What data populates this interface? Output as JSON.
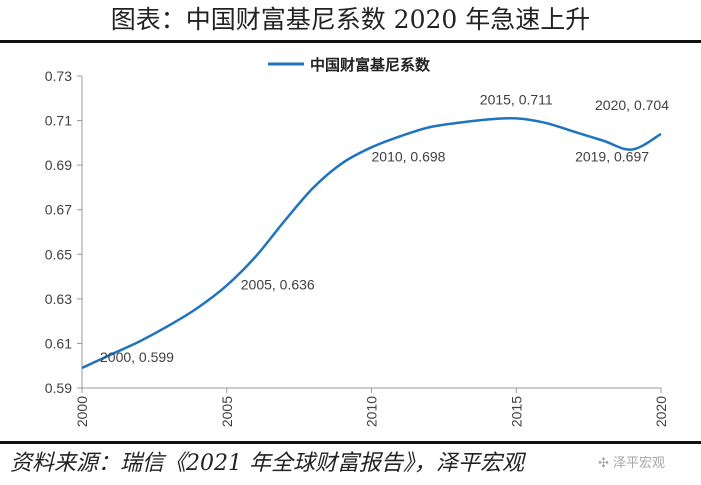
{
  "title": "图表：中国财富基尼系数 2020 年急速上升",
  "source": "资料来源：瑞信《2021 年全球财富报告》，泽平宏观",
  "watermark": "泽平宏观",
  "colors": {
    "series": "#1f74bd",
    "axis": "#999999",
    "text": "#404040"
  },
  "chart_data": {
    "type": "line",
    "legend": {
      "entries": [
        "中国财富基尼系数"
      ],
      "placement": "top-center"
    },
    "xlim": [
      2000,
      2020
    ],
    "x_ticks": [
      "2000",
      "2005",
      "2010",
      "2015",
      "2020"
    ],
    "ylim": [
      0.59,
      0.73
    ],
    "y_ticks": [
      "0.59",
      "0.61",
      "0.63",
      "0.65",
      "0.67",
      "0.69",
      "0.71",
      "0.73"
    ],
    "grid": false,
    "series": [
      {
        "name": "中国财富基尼系数",
        "x": [
          2000,
          2001,
          2002,
          2003,
          2004,
          2005,
          2006,
          2007,
          2008,
          2009,
          2010,
          2011,
          2012,
          2013,
          2014,
          2015,
          2016,
          2017,
          2018,
          2019,
          2020
        ],
        "y": [
          0.599,
          0.605,
          0.611,
          0.618,
          0.626,
          0.636,
          0.649,
          0.665,
          0.68,
          0.691,
          0.698,
          0.703,
          0.707,
          0.709,
          0.7105,
          0.711,
          0.709,
          0.705,
          0.701,
          0.697,
          0.704
        ]
      }
    ],
    "annotations": [
      {
        "text": "2000, 0.599",
        "x": 2000,
        "y": 0.599
      },
      {
        "text": "2005, 0.636",
        "x": 2005,
        "y": 0.636
      },
      {
        "text": "2010, 0.698",
        "x": 2010,
        "y": 0.698
      },
      {
        "text": "2015, 0.711",
        "x": 2015,
        "y": 0.711
      },
      {
        "text": "2019, 0.697",
        "x": 2019,
        "y": 0.697
      },
      {
        "text": "2020, 0.704",
        "x": 2020,
        "y": 0.704
      }
    ]
  }
}
